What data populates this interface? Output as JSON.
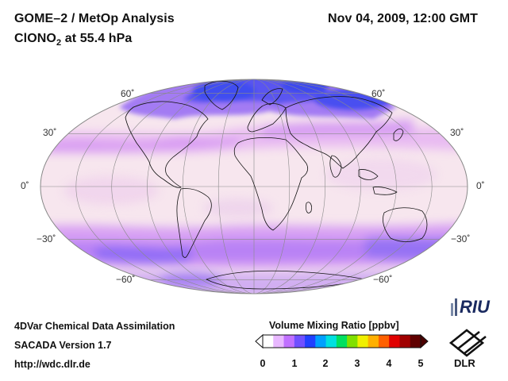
{
  "header": {
    "title": "GOME–2 / MetOp Analysis",
    "species_main": "ClONO",
    "species_sub": "2",
    "species_suffix": " at 55.4 hPa",
    "datetime": "Nov 04, 2009, 12:00 GMT"
  },
  "map": {
    "projection": "Mollweide",
    "lat_labels_left": [
      "60˚",
      "30˚",
      "0˚",
      "−30˚",
      "−60˚"
    ],
    "lat_labels_right": [
      "60˚",
      "30˚",
      "0˚",
      "−30˚",
      "−60˚"
    ]
  },
  "footer": {
    "line1": "4DVar Chemical Data Assimilation",
    "line2": "SACADA Version 1.7",
    "line3": "http://wdc.dlr.de"
  },
  "colorbar": {
    "title": "Volume Mixing Ratio [ppbv]",
    "ticks": [
      "0",
      "1",
      "2",
      "3",
      "4",
      "5"
    ],
    "colors": [
      "#ffffff",
      "#e8b8ff",
      "#c070ff",
      "#7050ff",
      "#2040ff",
      "#00a0ff",
      "#00e0e0",
      "#00e060",
      "#80e000",
      "#f0f000",
      "#ffb000",
      "#ff6000",
      "#e00000",
      "#a00000",
      "#600000"
    ]
  },
  "logos": {
    "riu": "RIU",
    "dlr": "DLR"
  }
}
